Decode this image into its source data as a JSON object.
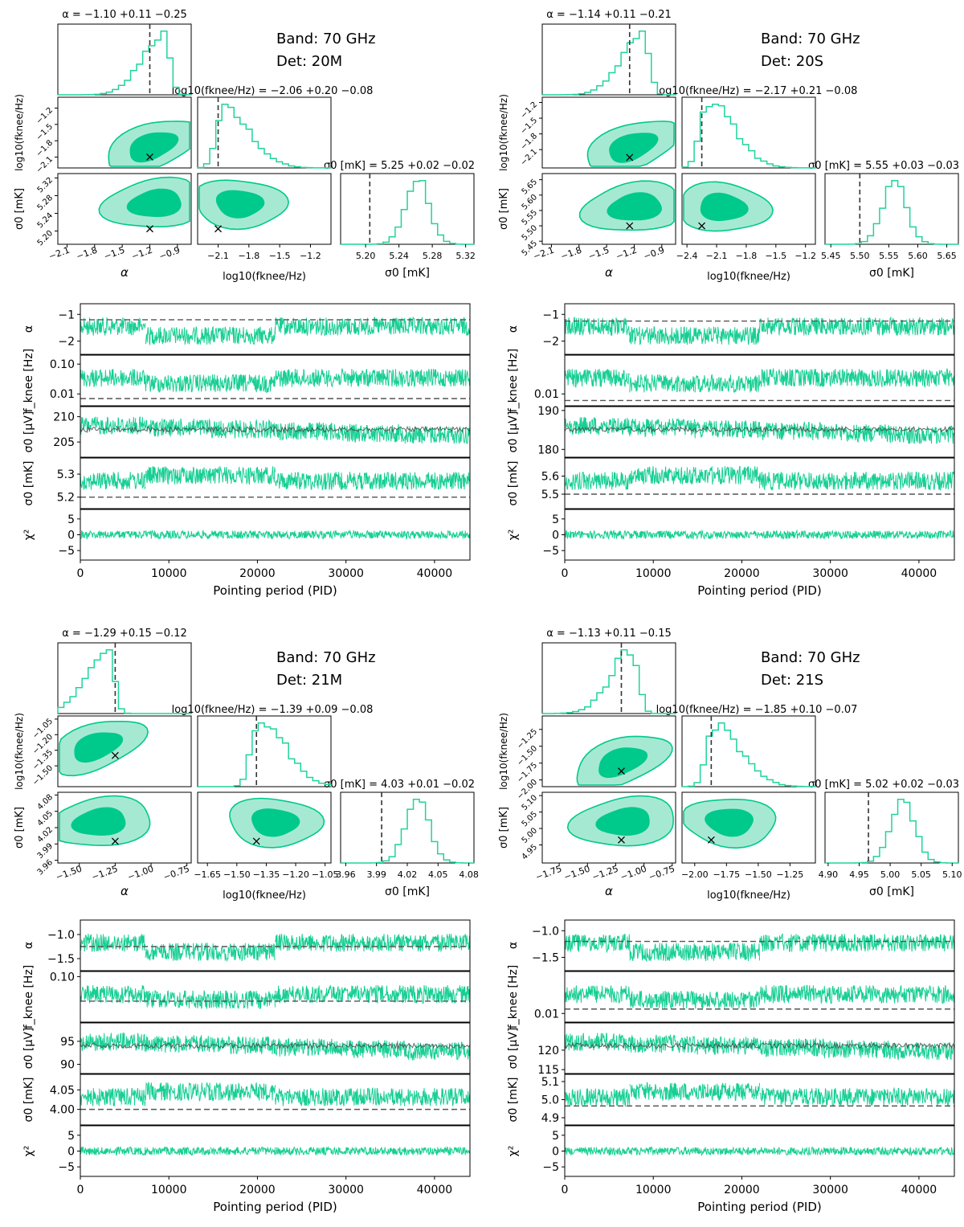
{
  "figure": {
    "common": {
      "xlabel": "Pointing period (PID)",
      "ylabels": [
        "α",
        "f_knee [Hz]",
        "σ0 [μV]",
        "σ0 [mK]",
        "χ²"
      ],
      "xticks": [
        0,
        10000,
        20000,
        30000,
        40000
      ],
      "xtick_labels": [
        "0",
        "10000",
        "20000",
        "30000",
        "40000"
      ],
      "xlim": [
        0,
        44000
      ],
      "corner_axis_labels": {
        "alpha": "α",
        "log_fknee": "log10(fknee/Hz)",
        "sigma0": "σ0 [mK]"
      },
      "colors": {
        "fill_dark": "#00c98c",
        "fill_light": "#a6e9d2",
        "line": "#1fd39c",
        "timeline": "#17cf93",
        "sigma_gray": "#404040",
        "dashed": "#555555"
      }
    }
  },
  "chart_data": [
    {
      "type": "corner+timeline",
      "band_label": "Band: 70 GHz",
      "det_label": "Det: 20M",
      "alpha_title": "α = −1.10 +0.11 −0.25",
      "fknee_title": "log10(fknee/Hz) = −2.06 +0.20 −0.08",
      "sigma_title": "σ0 [mK] = 5.25 +0.02 −0.02",
      "alpha": {
        "lim": [
          -2.2,
          -0.75
        ],
        "ticks": [
          -2.1,
          -1.8,
          -1.5,
          -1.2,
          -0.9
        ],
        "tick_labels": [
          "−2.1",
          "−1.8",
          "−1.5",
          "−1.2",
          "−0.9"
        ],
        "truth": -1.2,
        "peak": -1.05
      },
      "fknee": {
        "lim": [
          -2.3,
          -1.0
        ],
        "ticks": [
          -2.1,
          -1.8,
          -1.5,
          -1.2
        ],
        "tick_labels": [
          "−2.1",
          "−1.8",
          "−1.5",
          "−1.2"
        ],
        "left_ticks": [
          -2.1,
          -1.8,
          -1.5,
          -1.2
        ],
        "left_labels": [
          "−2.1",
          "−1.8",
          "−1.5",
          "−1.2"
        ],
        "truth": -2.1,
        "peak": -2.05
      },
      "sigma": {
        "lim": [
          5.17,
          5.33
        ],
        "ticks": [
          5.2,
          5.24,
          5.28,
          5.32
        ],
        "tick_labels": [
          "5.20",
          "5.24",
          "5.28",
          "5.32"
        ],
        "left_ticks": [
          5.2,
          5.24,
          5.28,
          5.32
        ],
        "left_labels": [
          "5.20",
          "5.24",
          "5.28",
          "5.32"
        ],
        "truth": 5.205,
        "peak": 5.262
      },
      "timeline": {
        "alpha": {
          "lim": [
            -2.5,
            -0.6
          ],
          "ticks": [
            -1,
            -2
          ],
          "tick_labels": [
            "−1",
            "−2"
          ],
          "truth": -1.2
        },
        "fknee": {
          "lim": [
            0.004,
            0.2
          ],
          "ticks": [
            0.1,
            0.01
          ],
          "tick_labels": [
            "0.10",
            "0.01"
          ],
          "truth": 0.007
        },
        "sigma_uv": {
          "lim": [
            202,
            212
          ],
          "ticks": [
            210,
            205
          ],
          "tick_labels": [
            "210",
            "205"
          ]
        },
        "sigma_mk": {
          "lim": [
            5.15,
            5.37
          ],
          "ticks": [
            5.3,
            5.2
          ],
          "tick_labels": [
            "5.3",
            "5.2"
          ],
          "truth": 5.2
        },
        "chi2": {
          "lim": [
            -8,
            8
          ],
          "ticks": [
            5,
            0,
            -5
          ],
          "tick_labels": [
            "5",
            "0",
            "−5"
          ]
        }
      }
    },
    {
      "type": "corner+timeline",
      "band_label": "Band: 70 GHz",
      "det_label": "Det: 20S",
      "alpha_title": "α = −1.14 +0.11 −0.21",
      "fknee_title": "log10(fknee/Hz) = −2.17 +0.21 −0.08",
      "sigma_title": "σ0 [mK] = 5.55 +0.03 −0.03",
      "alpha": {
        "lim": [
          -2.2,
          -0.75
        ],
        "ticks": [
          -2.1,
          -1.8,
          -1.5,
          -1.2,
          -0.9
        ],
        "tick_labels": [
          "−2.1",
          "−1.8",
          "−1.5",
          "−1.2",
          "−0.9"
        ],
        "truth": -1.25,
        "peak": -1.1
      },
      "fknee": {
        "lim": [
          -2.45,
          -1.1
        ],
        "ticks": [
          -2.4,
          -2.1,
          -1.8,
          -1.5,
          -1.2
        ],
        "tick_labels": [
          "−2.4",
          "−2.1",
          "−1.8",
          "−1.5",
          "−1.2"
        ],
        "left_ticks": [
          -2.1,
          -1.8,
          -1.5,
          -1.2
        ],
        "left_labels": [
          "−2.1",
          "−1.8",
          "−1.5",
          "−1.2"
        ],
        "truth": -2.25,
        "peak": -2.2
      },
      "sigma": {
        "lim": [
          5.44,
          5.67
        ],
        "ticks": [
          5.45,
          5.5,
          5.55,
          5.6,
          5.65
        ],
        "tick_labels": [
          "5.45",
          "5.50",
          "5.55",
          "5.60",
          "5.65"
        ],
        "left_ticks": [
          5.45,
          5.5,
          5.55,
          5.6,
          5.65
        ],
        "left_labels": [
          "5.45",
          "5.50",
          "5.55",
          "5.60",
          "5.65"
        ],
        "truth": 5.5,
        "peak": 5.56
      },
      "timeline": {
        "alpha": {
          "lim": [
            -2.5,
            -0.6
          ],
          "ticks": [
            -1,
            -2
          ],
          "tick_labels": [
            "−1",
            "−2"
          ],
          "truth": -1.25
        },
        "fknee": {
          "lim": [
            0.004,
            0.2
          ],
          "ticks": [
            0.01
          ],
          "tick_labels": [
            "0.01"
          ],
          "truth": 0.006
        },
        "sigma_uv": {
          "lim": [
            178,
            191
          ],
          "ticks": [
            190,
            180
          ],
          "tick_labels": [
            "190",
            "180"
          ]
        },
        "sigma_mk": {
          "lim": [
            5.42,
            5.7
          ],
          "ticks": [
            5.6,
            5.5
          ],
          "tick_labels": [
            "5.6",
            "5.5"
          ],
          "truth": 5.5
        },
        "chi2": {
          "lim": [
            -8,
            8
          ],
          "ticks": [
            5,
            0,
            -5
          ],
          "tick_labels": [
            "5",
            "0",
            "−5"
          ]
        }
      }
    },
    {
      "type": "corner+timeline",
      "band_label": "Band: 70 GHz",
      "det_label": "Det: 21M",
      "alpha_title": "α = −1.29 +0.15 −0.12",
      "fknee_title": "log10(fknee/Hz) = −1.39 +0.09 −0.08",
      "sigma_title": "σ0 [mK] = 4.03 +0.01 −0.02",
      "alpha": {
        "lim": [
          -1.65,
          -0.72
        ],
        "ticks": [
          -1.5,
          -1.25,
          -1.0,
          -0.75
        ],
        "tick_labels": [
          "−1.50",
          "−1.25",
          "−1.00",
          "−0.75"
        ],
        "truth": -1.25,
        "peak": -1.3
      },
      "fknee": {
        "lim": [
          -1.7,
          -1.02
        ],
        "ticks": [
          -1.65,
          -1.5,
          -1.35,
          -1.2,
          -1.05
        ],
        "tick_labels": [
          "−1.65",
          "−1.50",
          "−1.35",
          "−1.20",
          "−1.05"
        ],
        "left_ticks": [
          -1.5,
          -1.35,
          -1.2,
          -1.05
        ],
        "left_labels": [
          "−1.50",
          "−1.35",
          "−1.20",
          "−1.05"
        ],
        "truth": -1.4,
        "peak": -1.39
      },
      "sigma": {
        "lim": [
          3.955,
          4.085
        ],
        "ticks": [
          3.96,
          3.99,
          4.02,
          4.05,
          4.08
        ],
        "tick_labels": [
          "3.96",
          "3.99",
          "4.02",
          "4.05",
          "4.08"
        ],
        "left_ticks": [
          3.96,
          3.99,
          4.02,
          4.05,
          4.08
        ],
        "left_labels": [
          "3.96",
          "3.99",
          "4.02",
          "4.05",
          "4.08"
        ],
        "truth": 3.995,
        "peak": 4.03
      },
      "timeline": {
        "alpha": {
          "lim": [
            -1.75,
            -0.7
          ],
          "ticks": [
            -1.0,
            -1.5
          ],
          "tick_labels": [
            "−1.0",
            "−1.5"
          ],
          "truth": -1.25
        },
        "fknee": {
          "lim": [
            0.02,
            0.12
          ],
          "ticks": [
            0.1
          ],
          "tick_labels": [
            "0.10"
          ],
          "truth": 0.042
        },
        "sigma_uv": {
          "lim": [
            88,
            99
          ],
          "ticks": [
            95,
            90
          ],
          "tick_labels": [
            "95",
            "90"
          ]
        },
        "sigma_mk": {
          "lim": [
            3.96,
            4.09
          ],
          "ticks": [
            4.05,
            4.0
          ],
          "tick_labels": [
            "4.05",
            "4.00"
          ],
          "truth": 4.0
        },
        "chi2": {
          "lim": [
            -8,
            8
          ],
          "ticks": [
            5,
            0,
            -5
          ],
          "tick_labels": [
            "5",
            "0",
            "−5"
          ]
        }
      }
    },
    {
      "type": "corner+timeline",
      "band_label": "Band: 70 GHz",
      "det_label": "Det: 21S",
      "alpha_title": "α = −1.13 +0.11 −0.15",
      "fknee_title": "log10(fknee/Hz) = −1.85 +0.10 −0.07",
      "sigma_title": "σ0 [mK] = 5.02 +0.02 −0.03",
      "alpha": {
        "lim": [
          -1.9,
          -0.72
        ],
        "ticks": [
          -1.75,
          -1.5,
          -1.25,
          -1.0,
          -0.75
        ],
        "tick_labels": [
          "−1.75",
          "−1.50",
          "−1.25",
          "−1.00",
          "−0.75"
        ],
        "truth": -1.2,
        "peak": -1.1
      },
      "fknee": {
        "lim": [
          -2.1,
          -1.05
        ],
        "ticks": [
          -2.0,
          -1.75,
          -1.5,
          -1.25
        ],
        "tick_labels": [
          "−2.00",
          "−1.75",
          "−1.50",
          "−1.25"
        ],
        "left_ticks": [
          -2.0,
          -1.75,
          -1.5,
          -1.25
        ],
        "left_labels": [
          "−2.00",
          "−1.75",
          "−1.50",
          "−1.25"
        ],
        "truth": -1.87,
        "peak": -1.85
      },
      "sigma": {
        "lim": [
          4.895,
          5.11
        ],
        "ticks": [
          4.9,
          4.95,
          5.0,
          5.05,
          5.1
        ],
        "tick_labels": [
          "4.90",
          "4.95",
          "5.00",
          "5.05",
          "5.10"
        ],
        "left_ticks": [
          4.95,
          5.0,
          5.05,
          5.1
        ],
        "left_labels": [
          "4.95",
          "5.00",
          "5.05",
          "5.10"
        ],
        "truth": 4.965,
        "peak": 5.02
      },
      "timeline": {
        "alpha": {
          "lim": [
            -1.75,
            -0.8
          ],
          "ticks": [
            -1.0,
            -1.5
          ],
          "tick_labels": [
            "−1.0",
            "−1.5"
          ],
          "truth": -1.2
        },
        "fknee": {
          "lim": [
            0.006,
            0.12
          ],
          "ticks": [
            0.01
          ],
          "tick_labels": [
            "0.01"
          ],
          "truth": 0.013
        },
        "sigma_uv": {
          "lim": [
            114,
            127
          ],
          "ticks": [
            120,
            115
          ],
          "tick_labels": [
            "120",
            "115"
          ]
        },
        "sigma_mk": {
          "lim": [
            4.86,
            5.14
          ],
          "ticks": [
            5.1,
            5.0,
            4.9
          ],
          "tick_labels": [
            "5.1",
            "5.0",
            "4.9"
          ],
          "truth": 4.965
        },
        "chi2": {
          "lim": [
            -8,
            8
          ],
          "ticks": [
            5,
            0,
            -5
          ],
          "tick_labels": [
            "5",
            "0",
            "−5"
          ]
        }
      }
    }
  ]
}
